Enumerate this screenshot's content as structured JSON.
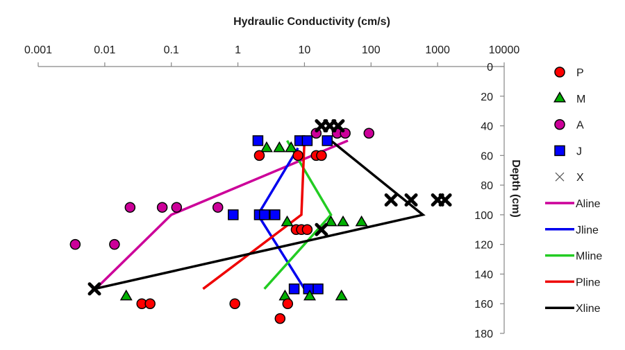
{
  "chart_data": {
    "type": "scatter",
    "title": "",
    "xlabel": "Hydraulic Conductivity (cm/s)",
    "ylabel": "Depth (cm)",
    "xscale": "log",
    "xlim": [
      0.001,
      10000
    ],
    "ylim": [
      0,
      180
    ],
    "y_reversed": true,
    "x_axis_position": "top",
    "y_axis_position": "right",
    "grid": false,
    "legend_position": "right",
    "x_ticks": [
      "0.001",
      "0.01",
      "0.1",
      "1",
      "10",
      "100",
      "1000",
      "10000"
    ],
    "x_tick_values": [
      0.001,
      0.01,
      0.1,
      1,
      10,
      100,
      1000,
      10000
    ],
    "y_ticks": [
      "0",
      "20",
      "40",
      "60",
      "80",
      "100",
      "120",
      "140",
      "160",
      "180"
    ],
    "y_tick_values": [
      0,
      20,
      40,
      60,
      80,
      100,
      120,
      140,
      160,
      180
    ],
    "series": [
      {
        "name": "P",
        "kind": "marker",
        "marker": "circle",
        "color": "#ff0000",
        "points": [
          [
            2.1,
            60
          ],
          [
            8,
            60
          ],
          [
            15,
            60
          ],
          [
            18,
            60
          ],
          [
            7.5,
            110
          ],
          [
            9,
            110
          ],
          [
            11,
            110
          ],
          [
            0.036,
            160
          ],
          [
            0.048,
            160
          ],
          [
            0.9,
            160
          ],
          [
            5.6,
            160
          ],
          [
            4.3,
            170
          ]
        ]
      },
      {
        "name": "M",
        "kind": "marker",
        "marker": "triangle",
        "color": "#00b000",
        "points": [
          [
            2.7,
            55
          ],
          [
            4.2,
            55
          ],
          [
            6.3,
            55
          ],
          [
            5.5,
            105
          ],
          [
            25,
            105
          ],
          [
            38,
            105
          ],
          [
            72,
            105
          ],
          [
            0.021,
            155
          ],
          [
            5.1,
            155
          ],
          [
            12,
            155
          ],
          [
            36,
            155
          ]
        ]
      },
      {
        "name": "A",
        "kind": "marker",
        "marker": "circle",
        "color": "#cc0099",
        "points": [
          [
            15,
            45
          ],
          [
            31,
            45
          ],
          [
            41,
            45
          ],
          [
            93,
            45
          ],
          [
            0.024,
            95
          ],
          [
            0.073,
            95
          ],
          [
            0.12,
            95
          ],
          [
            0.5,
            95
          ],
          [
            0.0036,
            120
          ],
          [
            0.014,
            120
          ]
        ]
      },
      {
        "name": "J",
        "kind": "marker",
        "marker": "square",
        "color": "#0000ff",
        "points": [
          [
            2,
            50
          ],
          [
            8.5,
            50
          ],
          [
            11,
            50
          ],
          [
            22,
            50
          ],
          [
            0.85,
            100
          ],
          [
            2.1,
            100
          ],
          [
            2.5,
            100
          ],
          [
            3.6,
            100
          ],
          [
            7,
            150
          ],
          [
            11.5,
            150
          ],
          [
            16,
            150
          ]
        ]
      },
      {
        "name": "X",
        "kind": "marker",
        "marker": "x",
        "color": "#000000",
        "points": [
          [
            18,
            40
          ],
          [
            24,
            40
          ],
          [
            32,
            40
          ],
          [
            200,
            90
          ],
          [
            400,
            90
          ],
          [
            1000,
            90
          ],
          [
            1300,
            90
          ],
          [
            18,
            110
          ],
          [
            0.007,
            150
          ]
        ]
      },
      {
        "name": "Aline",
        "kind": "line",
        "color": "#cc0099",
        "points": [
          [
            0.0073,
            150
          ],
          [
            0.1,
            100
          ],
          [
            45,
            50
          ]
        ]
      },
      {
        "name": "Jline",
        "kind": "line",
        "color": "#0000ee",
        "points": [
          [
            10,
            150
          ],
          [
            2,
            100
          ],
          [
            8,
            55
          ]
        ]
      },
      {
        "name": "Mline",
        "kind": "line",
        "color": "#22cc22",
        "points": [
          [
            2.5,
            150
          ],
          [
            25,
            100
          ],
          [
            5.5,
            50
          ]
        ]
      },
      {
        "name": "Pline",
        "kind": "line",
        "color": "#ee0000",
        "points": [
          [
            0.3,
            150
          ],
          [
            9,
            100
          ],
          [
            10,
            50
          ]
        ]
      },
      {
        "name": "Xline",
        "kind": "line",
        "color": "#000000",
        "points": [
          [
            0.007,
            150
          ],
          [
            600,
            100
          ],
          [
            25,
            50
          ]
        ]
      }
    ]
  }
}
